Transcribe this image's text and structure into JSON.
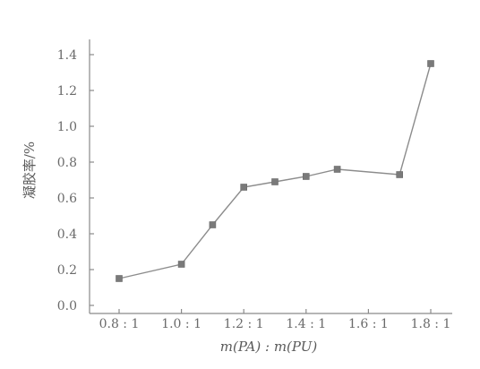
{
  "chart_data": {
    "type": "line",
    "xlabel": "m(PA) : m(PU)",
    "ylabel": "凝胶率/%",
    "ylim": [
      0,
      1.4
    ],
    "yticks": [
      "0.0",
      "0.2",
      "0.4",
      "0.6",
      "0.8",
      "1.0",
      "1.2",
      "1.4"
    ],
    "xlim": [
      0.8,
      1.8
    ],
    "xticks": [
      {
        "value": 0.8,
        "label": "0.8 : 1"
      },
      {
        "value": 1.0,
        "label": "1.0 : 1"
      },
      {
        "value": 1.2,
        "label": "1.2 : 1"
      },
      {
        "value": 1.4,
        "label": "1.4 : 1"
      },
      {
        "value": 1.6,
        "label": "1.6 : 1"
      },
      {
        "value": 1.8,
        "label": "1.8 : 1"
      }
    ],
    "grid": false,
    "series": [
      {
        "x": [
          0.8,
          1.0,
          1.1,
          1.2,
          1.3,
          1.4,
          1.5,
          1.7,
          1.8
        ],
        "y": [
          0.15,
          0.23,
          0.45,
          0.66,
          0.69,
          0.72,
          0.76,
          0.73,
          1.35
        ],
        "color": "#8c8c8c",
        "marker": "square"
      }
    ]
  }
}
